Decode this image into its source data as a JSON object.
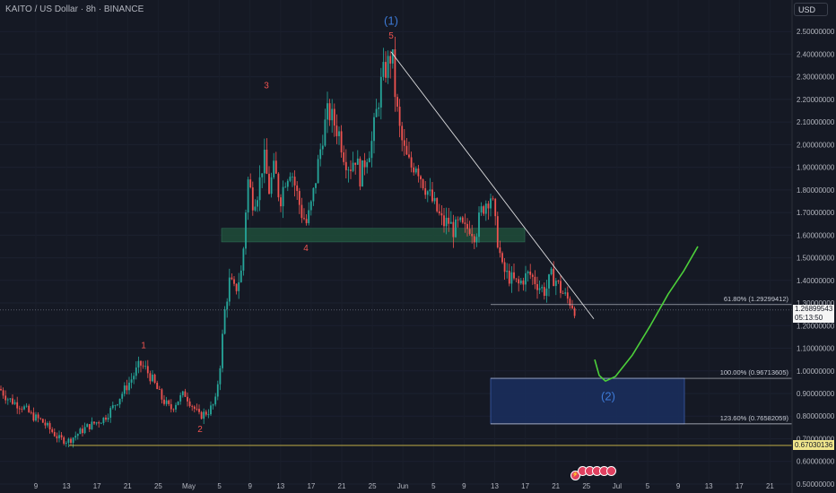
{
  "header": {
    "title": "KAITO / US Dollar · 8h · BINANCE",
    "currency": "USD"
  },
  "colors": {
    "background": "#151924",
    "up": "#26a69a",
    "down": "#ef5350",
    "wave_label": "#ef5350",
    "wave_label_major": "#3d7ad6",
    "trendline": "#ffffff",
    "projection": "#4ccf3a",
    "support_zone": "#1f4d3a",
    "target_zone": "#1a2d5c",
    "low_line": "#d9c34a"
  },
  "chart_data": {
    "type": "candlestick",
    "y_scale": "linear",
    "ylim": [
      0.48,
      2.58
    ],
    "y_ticks": [
      "2.50000000",
      "2.40000000",
      "2.30000000",
      "2.20000000",
      "2.10000000",
      "2.00000000",
      "1.90000000",
      "1.80000000",
      "1.70000000",
      "1.60000000",
      "1.50000000",
      "1.40000000",
      "1.30000000",
      "1.20000000",
      "1.10000000",
      "1.00000000",
      "0.90000000",
      "0.80000000",
      "0.70000000",
      "0.60000000",
      "0.50000000"
    ],
    "y_tick_values": [
      2.5,
      2.4,
      2.3,
      2.2,
      2.1,
      2.0,
      1.9,
      1.8,
      1.7,
      1.6,
      1.5,
      1.4,
      1.3,
      1.2,
      1.1,
      1.0,
      0.9,
      0.8,
      0.7,
      0.6,
      0.5
    ],
    "x_ticks": [
      "9",
      "13",
      "17",
      "21",
      "25",
      "May",
      "5",
      "9",
      "13",
      "17",
      "21",
      "25",
      "Jun",
      "5",
      "9",
      "13",
      "17",
      "21",
      "25",
      "Jul",
      "5",
      "9",
      "13",
      "17",
      "21"
    ],
    "price_path": [
      [
        0,
        0.92
      ],
      [
        8,
        0.88
      ],
      [
        16,
        0.86
      ],
      [
        26,
        0.84
      ],
      [
        36,
        0.8
      ],
      [
        46,
        0.78
      ],
      [
        56,
        0.74
      ],
      [
        66,
        0.7
      ],
      [
        76,
        0.69
      ],
      [
        86,
        0.72
      ],
      [
        96,
        0.75
      ],
      [
        106,
        0.77
      ],
      [
        116,
        0.79
      ],
      [
        126,
        0.84
      ],
      [
        136,
        0.9
      ],
      [
        146,
        0.96
      ],
      [
        156,
        1.03
      ],
      [
        162,
        1.01
      ],
      [
        170,
        0.96
      ],
      [
        180,
        0.88
      ],
      [
        190,
        0.83
      ],
      [
        198,
        0.87
      ],
      [
        206,
        0.9
      ],
      [
        214,
        0.85
      ],
      [
        222,
        0.8
      ],
      [
        232,
        0.82
      ],
      [
        240,
        0.86
      ],
      [
        246,
        1.05
      ],
      [
        250,
        1.25
      ],
      [
        256,
        1.4
      ],
      [
        262,
        1.35
      ],
      [
        270,
        1.45
      ],
      [
        276,
        1.85
      ],
      [
        282,
        1.75
      ],
      [
        288,
        1.8
      ],
      [
        294,
        1.95
      ],
      [
        300,
        1.8
      ],
      [
        306,
        1.9
      ],
      [
        312,
        1.75
      ],
      [
        318,
        1.85
      ],
      [
        324,
        1.9
      ],
      [
        330,
        1.8
      ],
      [
        336,
        1.7
      ],
      [
        342,
        1.65
      ],
      [
        348,
        1.75
      ],
      [
        354,
        1.9
      ],
      [
        360,
        2.05
      ],
      [
        366,
        2.15
      ],
      [
        372,
        2.1
      ],
      [
        378,
        2.05
      ],
      [
        384,
        1.95
      ],
      [
        390,
        1.9
      ],
      [
        396,
        1.95
      ],
      [
        402,
        1.85
      ],
      [
        408,
        1.95
      ],
      [
        414,
        2.0
      ],
      [
        420,
        2.15
      ],
      [
        426,
        2.3
      ],
      [
        432,
        2.35
      ],
      [
        437,
        2.41
      ],
      [
        441,
        2.2
      ],
      [
        446,
        2.05
      ],
      [
        452,
        1.95
      ],
      [
        458,
        1.9
      ],
      [
        464,
        1.92
      ],
      [
        470,
        1.85
      ],
      [
        476,
        1.8
      ],
      [
        482,
        1.75
      ],
      [
        488,
        1.7
      ],
      [
        494,
        1.65
      ],
      [
        500,
        1.66
      ],
      [
        506,
        1.62
      ],
      [
        512,
        1.65
      ],
      [
        518,
        1.62
      ],
      [
        524,
        1.64
      ],
      [
        530,
        1.6
      ],
      [
        536,
        1.7
      ],
      [
        542,
        1.75
      ],
      [
        548,
        1.78
      ],
      [
        552,
        1.65
      ],
      [
        556,
        1.55
      ],
      [
        560,
        1.45
      ],
      [
        566,
        1.42
      ],
      [
        572,
        1.4
      ],
      [
        578,
        1.38
      ],
      [
        584,
        1.41
      ],
      [
        590,
        1.43
      ],
      [
        596,
        1.4
      ],
      [
        602,
        1.37
      ],
      [
        608,
        1.35
      ],
      [
        614,
        1.42
      ],
      [
        620,
        1.4
      ],
      [
        626,
        1.35
      ],
      [
        632,
        1.32
      ],
      [
        637,
        1.3
      ],
      [
        641,
        1.27
      ]
    ],
    "wave_labels": [
      {
        "text": "1",
        "x": 160,
        "price": 1.1
      },
      {
        "text": "2",
        "x": 223,
        "price": 0.73
      },
      {
        "text": "3",
        "x": 297,
        "price": 2.25
      },
      {
        "text": "4",
        "x": 341,
        "price": 1.53
      },
      {
        "text": "5",
        "x": 436,
        "price": 2.47
      },
      {
        "text": "(1)",
        "x": 436,
        "price": 2.53
      },
      {
        "text": "(2)",
        "x": 678,
        "price": 0.87
      }
    ],
    "fib_levels": [
      {
        "label": "61.80% (1.29299412)",
        "price": 1.29299412
      },
      {
        "label": "100.00% (0.96713605)",
        "price": 0.96713605
      },
      {
        "label": "123.60% (0.76582059)",
        "price": 0.76582059
      }
    ],
    "support_zone": {
      "price_top": 1.63,
      "price_bottom": 1.57
    },
    "target_zone": {
      "price_top": 0.96713605,
      "price_bottom": 0.76582059
    },
    "trendline": {
      "from": {
        "x": 436,
        "price": 2.41
      },
      "to": {
        "x": 662,
        "price": 1.23
      }
    },
    "projection": [
      [
        663,
        1.05
      ],
      [
        668,
        0.98
      ],
      [
        675,
        0.955
      ],
      [
        686,
        0.975
      ],
      [
        705,
        1.07
      ],
      [
        725,
        1.2
      ],
      [
        745,
        1.34
      ],
      [
        762,
        1.44
      ],
      [
        778,
        1.55
      ]
    ],
    "last_price": {
      "price": 1.26899543,
      "label": "1.26899543",
      "countdown": "05:13:50"
    },
    "low_line": {
      "price": 0.67030136,
      "label": "0.67030136"
    }
  }
}
